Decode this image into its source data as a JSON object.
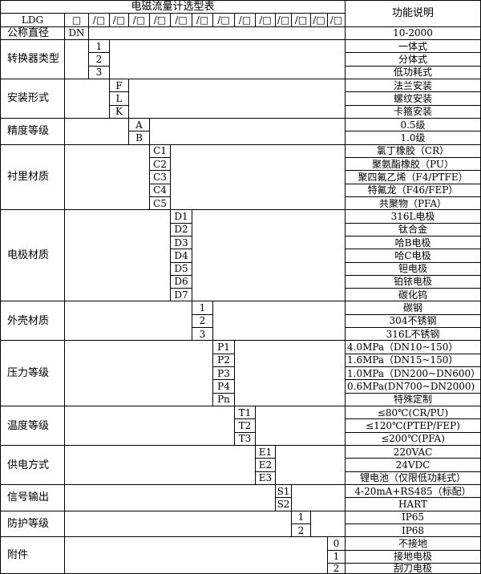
{
  "title": "电磁流量计选型表",
  "function_header": "功能说明",
  "header_row": {
    "model": "LDG",
    "first_box": "□",
    "slot_box": "/□",
    "slot_count": 13
  },
  "nominal": {
    "label": "公称直径",
    "code": "DN",
    "desc": "10-2000"
  },
  "groups": [
    {
      "label": "转换器类型",
      "items": [
        {
          "code": "1",
          "desc": "一体式"
        },
        {
          "code": "2",
          "desc": "分体式"
        },
        {
          "code": "3",
          "desc": "低功耗式"
        }
      ]
    },
    {
      "label": "安装形式",
      "items": [
        {
          "code": "F",
          "desc": "法兰安装"
        },
        {
          "code": "L",
          "desc": "螺纹安装"
        },
        {
          "code": "K",
          "desc": "卡箍安装"
        }
      ]
    },
    {
      "label": "精度等级",
      "items": [
        {
          "code": "A",
          "desc": "0.5级"
        },
        {
          "code": "B",
          "desc": "1.0级"
        }
      ]
    },
    {
      "label": "衬里材质",
      "items": [
        {
          "code": "C1",
          "desc": "氯丁橡胶（CR）"
        },
        {
          "code": "C2",
          "desc": "聚氨酯橡胶（PU）"
        },
        {
          "code": "C3",
          "desc": "聚四氟乙烯（F4/PTFE）"
        },
        {
          "code": "C4",
          "desc": "特氟龙（F46/FEP）"
        },
        {
          "code": "C5",
          "desc": "共聚物（PFA）"
        }
      ]
    },
    {
      "label": "电极材质",
      "items": [
        {
          "code": "D1",
          "desc": "316L电极"
        },
        {
          "code": "D2",
          "desc": "钛合金"
        },
        {
          "code": "D3",
          "desc": "哈B电极"
        },
        {
          "code": "D4",
          "desc": "哈C电极"
        },
        {
          "code": "D5",
          "desc": "钽电极"
        },
        {
          "code": "D6",
          "desc": "铂铱电极"
        },
        {
          "code": "D7",
          "desc": "碳化钨"
        }
      ]
    },
    {
      "label": "外壳材质",
      "items": [
        {
          "code": "1",
          "desc": "碳钢"
        },
        {
          "code": "2",
          "desc": "304不锈钢"
        },
        {
          "code": "3",
          "desc": "316L不锈钢"
        }
      ]
    },
    {
      "label": "压力等级",
      "items": [
        {
          "code": "P1",
          "desc": "4.0MPa（DN10~150）"
        },
        {
          "code": "P2",
          "desc": "1.6MPa（DN15~150）"
        },
        {
          "code": "P3",
          "desc": "1.0MPa（DN200~DN600）"
        },
        {
          "code": "P4",
          "desc": "0.6MPa(DN700~DN2000)"
        },
        {
          "code": "Pn",
          "desc": "特殊定制"
        }
      ]
    },
    {
      "label": "温度等级",
      "items": [
        {
          "code": "T1",
          "desc": "≤80℃(CR/PU)"
        },
        {
          "code": "T2",
          "desc": "≤120℃(PTEP/FEP)"
        },
        {
          "code": "T3",
          "desc": "≤200℃(PFA)"
        }
      ]
    },
    {
      "label": "供电方式",
      "items": [
        {
          "code": "E1",
          "desc": "220VAC"
        },
        {
          "code": "E2",
          "desc": "24VDC"
        },
        {
          "code": "E3",
          "desc": "锂电池（仅限低功耗式）"
        }
      ]
    },
    {
      "label": "信号输出",
      "items": [
        {
          "code": "S1",
          "desc": "4-20mA+RS485（标配）"
        },
        {
          "code": "S2",
          "desc": "HART"
        }
      ]
    },
    {
      "label": "防护等级",
      "items": [
        {
          "code": "1",
          "desc": "IP65"
        },
        {
          "code": "2",
          "desc": "IP68"
        }
      ]
    },
    {
      "label": "附件",
      "items": [
        {
          "code": "0",
          "desc": "不接地"
        },
        {
          "code": "1",
          "desc": "接地电极"
        },
        {
          "code": "2",
          "desc": "刮刀电极"
        }
      ]
    }
  ]
}
